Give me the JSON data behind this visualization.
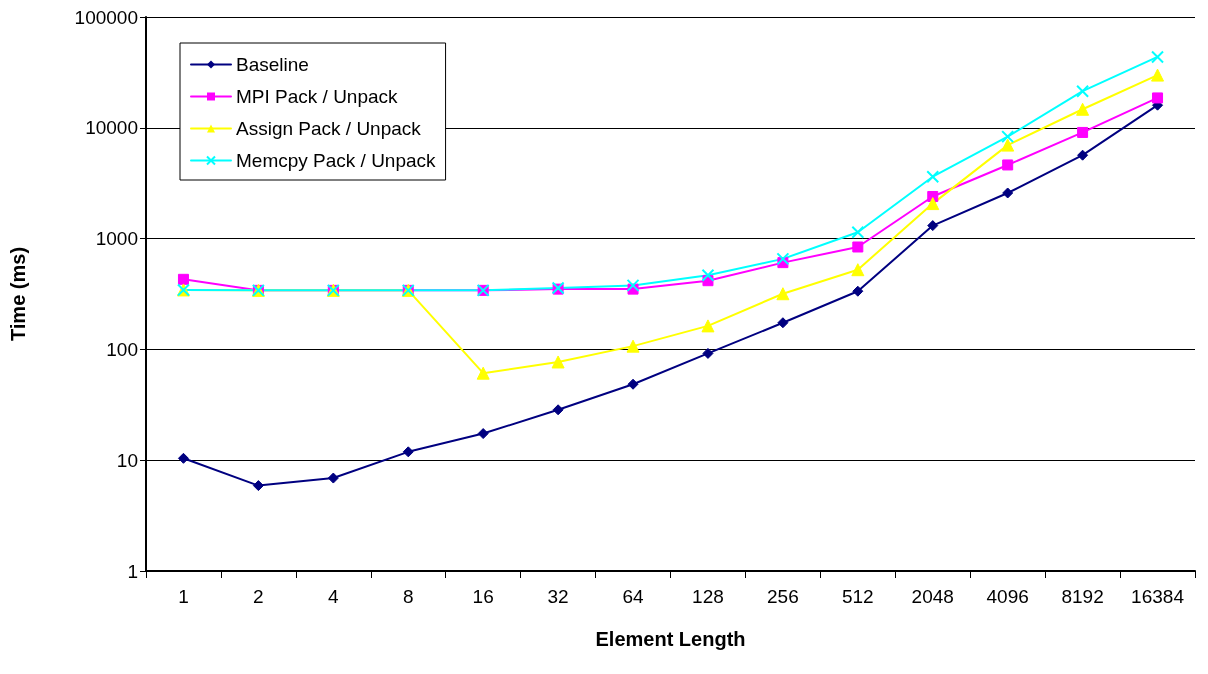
{
  "chart_data": {
    "type": "line",
    "xlabel": "Element Length",
    "ylabel": "Time (ms)",
    "categories": [
      "1",
      "2",
      "4",
      "8",
      "16",
      "32",
      "64",
      "128",
      "256",
      "512",
      "2048",
      "4096",
      "8192",
      "16384"
    ],
    "series": [
      {
        "name": "Baseline",
        "color": "#000080",
        "marker": "diamond",
        "values": [
          10.4,
          5.9,
          6.9,
          11.9,
          17.4,
          28.5,
          48.5,
          92,
          174,
          335,
          1310,
          2580,
          5660,
          16000
        ]
      },
      {
        "name": "MPI Pack / Unpack",
        "color": "#ff00ff",
        "marker": "square",
        "values": [
          429,
          341,
          341,
          341,
          341,
          350,
          350,
          417,
          607,
          840,
          2400,
          4620,
          9080,
          18600
        ]
      },
      {
        "name": "Assign Pack / Unpack",
        "color": "#ffff00",
        "marker": "triangle",
        "values": [
          344,
          341,
          341,
          341,
          61,
          77,
          107,
          163,
          318,
          524,
          2070,
          6980,
          14700,
          29900
        ]
      },
      {
        "name": "Memcpy Pack / Unpack",
        "color": "#00ffff",
        "marker": "cross",
        "values": [
          344,
          341,
          341,
          341,
          341,
          358,
          378,
          467,
          656,
          1140,
          3620,
          8320,
          21400,
          43600
        ]
      }
    ],
    "log": "y",
    "ylim": [
      1,
      100000
    ],
    "yticks": [
      1,
      10,
      100,
      1000,
      10000,
      100000
    ],
    "grid": "y",
    "legend": "top left"
  }
}
